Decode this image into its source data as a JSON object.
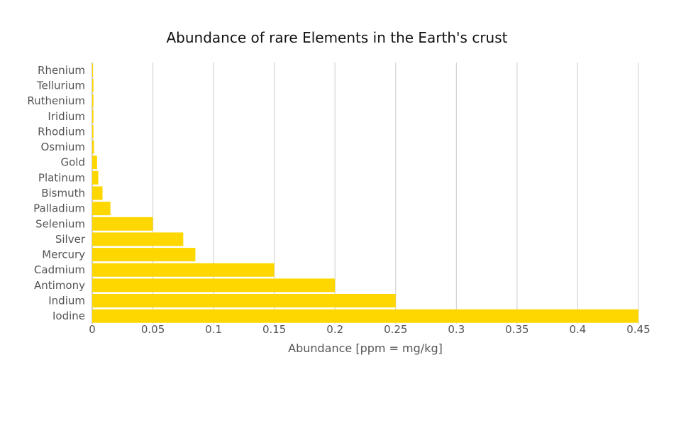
{
  "chart_data": {
    "type": "bar",
    "orientation": "horizontal",
    "title": "Abundance of rare Elements in the Earth's crust",
    "xlabel": "Abundance [ppm = mg/kg]",
    "ylabel": "",
    "categories": [
      "Rhenium",
      "Tellurium",
      "Ruthenium",
      "Iridium",
      "Rhodium",
      "Osmium",
      "Gold",
      "Platinum",
      "Bismuth",
      "Palladium",
      "Selenium",
      "Silver",
      "Mercury",
      "Cadmium",
      "Antimony",
      "Indium",
      "Iodine"
    ],
    "values": [
      0.0007,
      0.001,
      0.001,
      0.001,
      0.001,
      0.0015,
      0.004,
      0.005,
      0.0085,
      0.015,
      0.05,
      0.075,
      0.085,
      0.15,
      0.2,
      0.25,
      0.45
    ],
    "xlim": [
      0,
      0.45
    ],
    "xticks": [
      "0",
      "0.05",
      "0.1",
      "0.15",
      "0.2",
      "0.25",
      "0.3",
      "0.35",
      "0.4",
      "0.45"
    ],
    "grid": "vertical",
    "legend": "none",
    "bar_color": "#FFD700"
  }
}
